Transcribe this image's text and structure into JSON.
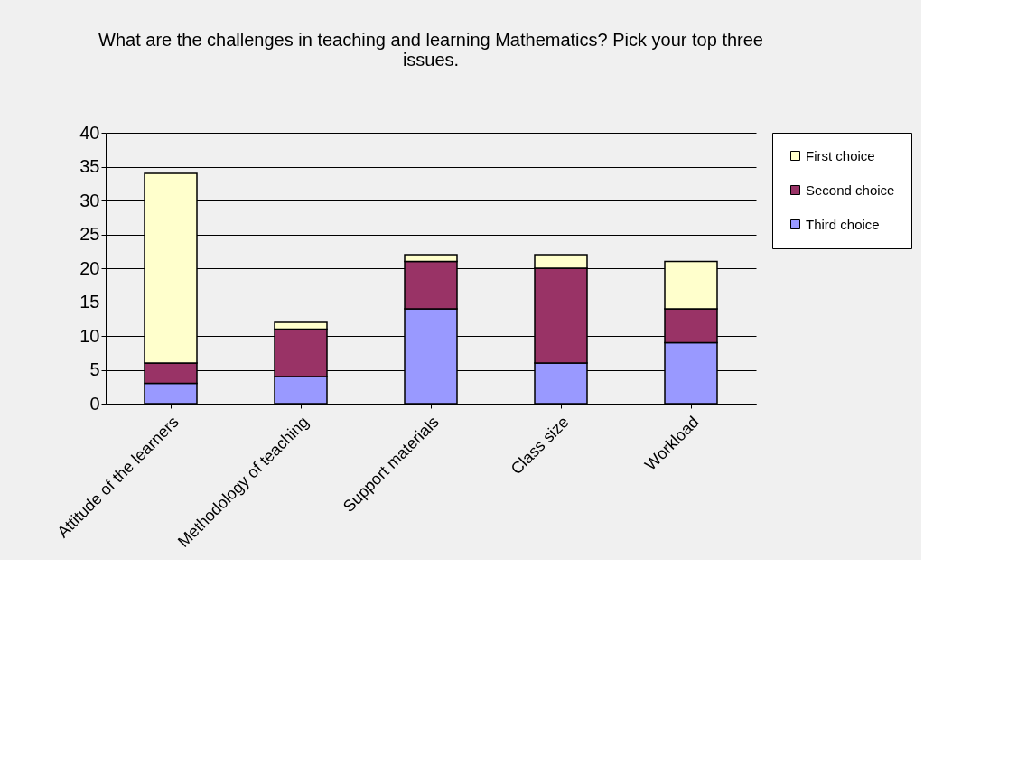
{
  "chart_data": {
    "type": "bar",
    "title": "What are the challenges in teaching and learning Mathematics? Pick your top three issues.",
    "categories": [
      "Attitude of the learners",
      "Methodology of teaching",
      "Support materials",
      "Class size",
      "Workload"
    ],
    "stacked": true,
    "series": [
      {
        "name": "Third choice",
        "color": "#9999ff",
        "values": [
          3,
          4,
          14,
          6,
          9
        ]
      },
      {
        "name": "Second choice",
        "color": "#993366",
        "values": [
          3,
          7,
          7,
          14,
          5
        ]
      },
      {
        "name": "First choice",
        "color": "#ffffcc",
        "values": [
          28,
          1,
          1,
          2,
          7
        ]
      }
    ],
    "ylim": [
      0,
      40
    ],
    "yticks": [
      0,
      5,
      10,
      15,
      20,
      25,
      30,
      35,
      40
    ],
    "grid": "y",
    "legend": "right"
  }
}
